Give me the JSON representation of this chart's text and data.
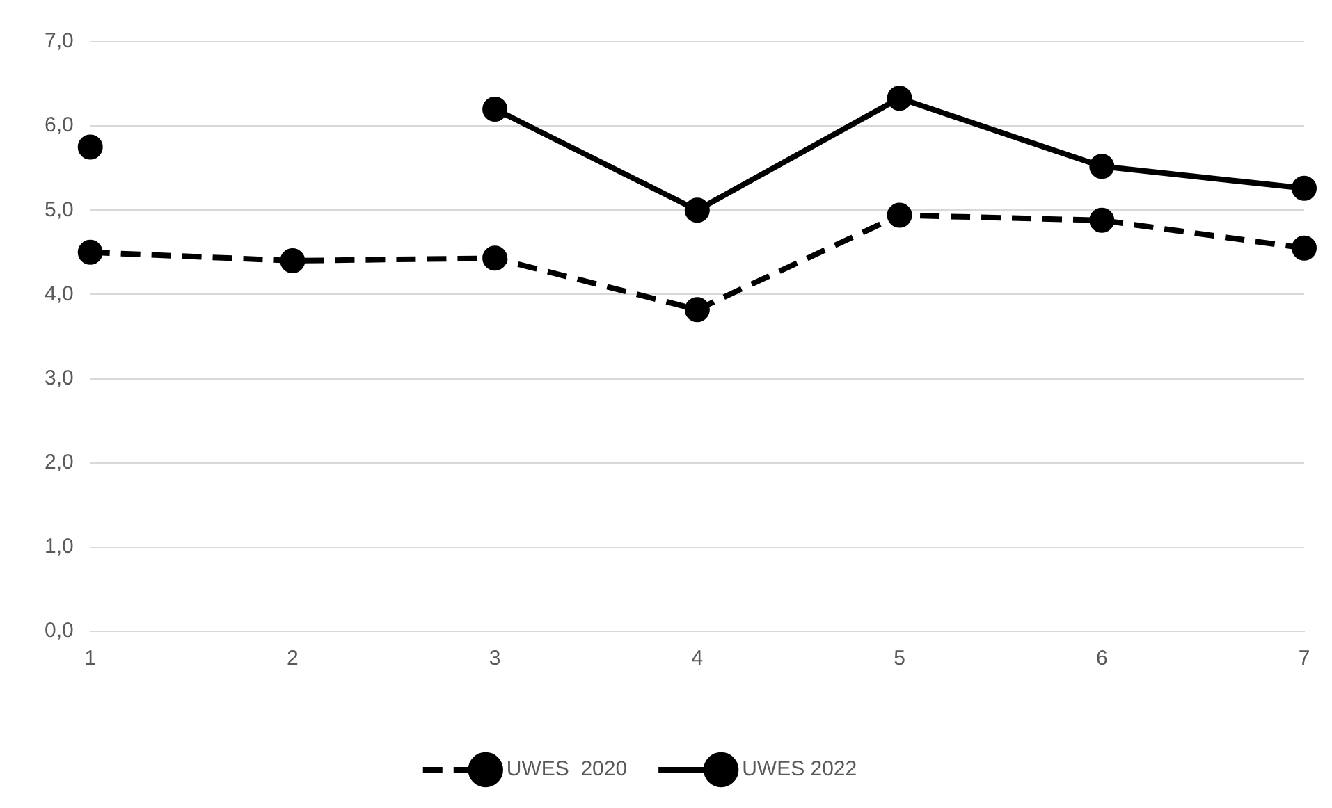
{
  "chart_data": {
    "type": "line",
    "categories": [
      "1",
      "2",
      "3",
      "4",
      "5",
      "6",
      "7"
    ],
    "series": [
      {
        "name": "UWES  2020",
        "color": "#000000",
        "line_style": "dashed",
        "values": [
          4.5,
          4.4,
          4.43,
          3.82,
          4.94,
          4.88,
          4.55
        ]
      },
      {
        "name": "UWES 2022",
        "color": "#000000",
        "line_style": "solid",
        "values": [
          5.75,
          null,
          6.2,
          5.0,
          6.33,
          5.52,
          5.26
        ]
      }
    ],
    "ylim": [
      0,
      7
    ],
    "yticks": [
      {
        "value": 0,
        "label": "0,0"
      },
      {
        "value": 1,
        "label": "1,0"
      },
      {
        "value": 2,
        "label": "2,0"
      },
      {
        "value": 3,
        "label": "3,0"
      },
      {
        "value": 4,
        "label": "4,0"
      },
      {
        "value": 5,
        "label": "5,0"
      },
      {
        "value": 6,
        "label": "6,0"
      },
      {
        "value": 7,
        "label": "7,0"
      }
    ],
    "grid": "y",
    "legend": "bottom",
    "marker": "circle"
  }
}
